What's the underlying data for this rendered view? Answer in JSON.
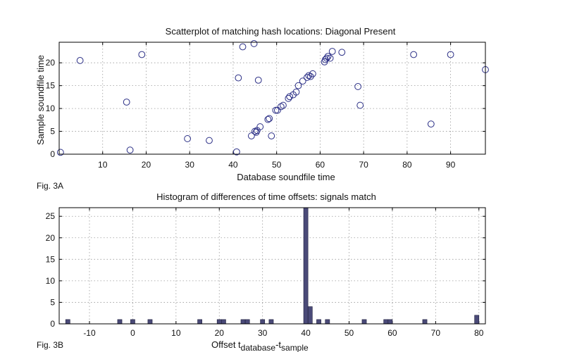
{
  "chart_data": [
    {
      "type": "scatter",
      "title": "Scatterplot of matching hash locations:  Diagonal Present",
      "xlabel": "Database soundfile time",
      "ylabel": "Sample soundfile time",
      "fig_label": "Fig. 3A",
      "xlim": [
        0,
        98
      ],
      "ylim": [
        0,
        24.5
      ],
      "xticks": [
        10,
        20,
        30,
        40,
        50,
        60,
        70,
        80,
        90
      ],
      "yticks": [
        0,
        5,
        10,
        15,
        20
      ],
      "grid": true,
      "marker": "circle",
      "color": "#2b2f86",
      "points": [
        [
          0.3,
          0.4
        ],
        [
          4.8,
          20.5
        ],
        [
          15.5,
          11.4
        ],
        [
          16.3,
          0.9
        ],
        [
          19.0,
          21.8
        ],
        [
          29.5,
          3.4
        ],
        [
          34.5,
          3.0
        ],
        [
          40.8,
          0.5
        ],
        [
          41.2,
          16.7
        ],
        [
          42.2,
          23.5
        ],
        [
          44.2,
          4.0
        ],
        [
          44.8,
          24.2
        ],
        [
          45.0,
          5.0
        ],
        [
          45.3,
          4.8
        ],
        [
          45.8,
          16.2
        ],
        [
          45.5,
          5.2
        ],
        [
          46.2,
          6.0
        ],
        [
          48.0,
          7.6
        ],
        [
          48.3,
          7.8
        ],
        [
          48.8,
          4.0
        ],
        [
          49.8,
          9.6
        ],
        [
          50.2,
          9.6
        ],
        [
          51.0,
          10.4
        ],
        [
          51.5,
          10.7
        ],
        [
          52.7,
          12.2
        ],
        [
          53.0,
          12.6
        ],
        [
          53.8,
          13.0
        ],
        [
          54.5,
          13.6
        ],
        [
          55.0,
          15.0
        ],
        [
          56.0,
          16.0
        ],
        [
          57.0,
          16.8
        ],
        [
          57.4,
          17.2
        ],
        [
          57.8,
          17.0
        ],
        [
          58.3,
          17.6
        ],
        [
          61.0,
          20.2
        ],
        [
          61.2,
          20.7
        ],
        [
          61.5,
          21.0
        ],
        [
          61.8,
          21.4
        ],
        [
          62.3,
          21.0
        ],
        [
          62.8,
          22.5
        ],
        [
          65.0,
          22.3
        ],
        [
          68.7,
          14.8
        ],
        [
          69.2,
          10.7
        ],
        [
          81.5,
          21.8
        ],
        [
          85.5,
          6.6
        ],
        [
          90.0,
          21.8
        ],
        [
          98.0,
          18.5
        ]
      ]
    },
    {
      "type": "bar",
      "title": "Histogram of differences of time offsets: signals match",
      "xlabel_main": "Offset t",
      "xlabel_sub1": "database",
      "xlabel_mid": "-t",
      "xlabel_sub2": "sample",
      "fig_label": "Fig. 3B",
      "xlim": [
        -17,
        81.5
      ],
      "ylim": [
        0,
        27
      ],
      "xticks": [
        -10,
        0,
        10,
        20,
        30,
        40,
        50,
        60,
        70,
        80
      ],
      "yticks": [
        0,
        5,
        10,
        15,
        20,
        25
      ],
      "grid": true,
      "color": "#4a4a78",
      "bin_width": 1,
      "bins": [
        [
          -15,
          1
        ],
        [
          -3,
          1
        ],
        [
          0,
          1
        ],
        [
          4,
          1
        ],
        [
          15.5,
          1
        ],
        [
          20,
          1
        ],
        [
          21,
          1
        ],
        [
          25.5,
          1
        ],
        [
          26.5,
          1
        ],
        [
          30,
          1
        ],
        [
          32,
          1
        ],
        [
          40,
          27
        ],
        [
          41,
          4
        ],
        [
          43,
          1
        ],
        [
          45,
          1
        ],
        [
          53.5,
          1
        ],
        [
          58.5,
          1
        ],
        [
          59.5,
          1
        ],
        [
          67.5,
          1
        ],
        [
          79.5,
          2
        ]
      ]
    }
  ]
}
